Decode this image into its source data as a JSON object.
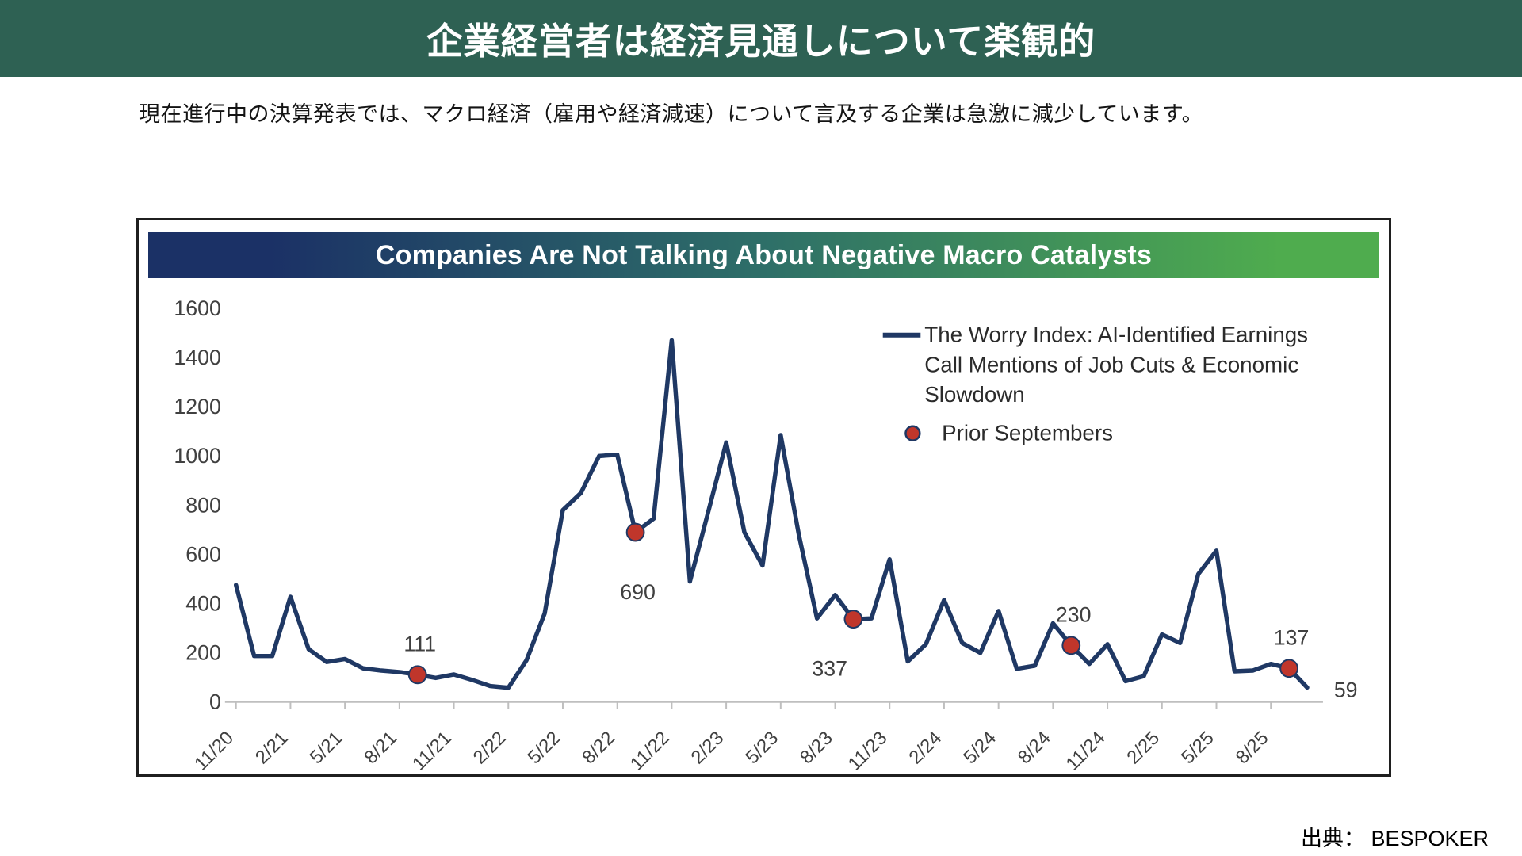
{
  "page": {
    "header": {
      "title": "企業経営者は経済見通しについて楽観的",
      "bg_color": "#2E6153",
      "text_color": "#FFFFFF"
    },
    "subtitle": "現在進行中の決算発表では、マクロ経済（雇用や経済減速）について言及する企業は急激に減少しています。",
    "source": "出典： BESPOKER"
  },
  "chart_data": {
    "type": "line",
    "title": "Companies Are Not Talking About Negative Macro Catalysts",
    "title_banner_gradient": [
      "#1B3166",
      "#2E6F68",
      "#4FAC4E"
    ],
    "line_color": "#1F3864",
    "marker_color": "#C0362B",
    "axis_color": "#BFBFBF",
    "label_color": "#404040",
    "legend_text_color": "#2B2B2B",
    "ylim": [
      0,
      1600
    ],
    "ytick_step": 200,
    "x_start_label": "11/20",
    "ticks_every_n_points": 3,
    "x_tick_labels": [
      "11/20",
      "2/21",
      "5/21",
      "8/21",
      "11/21",
      "2/22",
      "5/22",
      "8/22",
      "11/22",
      "2/23",
      "5/23",
      "8/23",
      "11/23",
      "2/24",
      "5/24",
      "8/24",
      "11/24",
      "2/25",
      "5/25",
      "8/25"
    ],
    "series": [
      {
        "name": "The Worry Index: AI-Identified Earnings Call Mentions of Job Cuts & Economic Slowdown",
        "values": [
          476,
          187,
          187,
          428,
          215,
          163,
          175,
          137,
          128,
          122,
          111,
          98,
          112,
          90,
          65,
          58,
          170,
          360,
          780,
          850,
          1000,
          1005,
          690,
          745,
          1470,
          490,
          770,
          1055,
          690,
          555,
          1085,
          680,
          340,
          435,
          337,
          340,
          580,
          165,
          235,
          415,
          240,
          200,
          370,
          135,
          148,
          320,
          230,
          155,
          235,
          85,
          105,
          275,
          240,
          520,
          615,
          125,
          128,
          155,
          137,
          59
        ]
      }
    ],
    "legend": {
      "series_label_lines": [
        "The Worry Index: AI-Identified Earnings",
        "Call Mentions of Job Cuts & Economic",
        "Slowdown"
      ],
      "marker_label": "Prior Septembers"
    },
    "annotations": [
      {
        "index": 10,
        "month": "9/21",
        "label": "111",
        "value": 111,
        "placement": "above"
      },
      {
        "index": 22,
        "month": "9/22",
        "label": "690",
        "value": 690,
        "placement": "below"
      },
      {
        "index": 34,
        "month": "9/23",
        "label": "337",
        "value": 337,
        "placement": "below-left"
      },
      {
        "index": 46,
        "month": "9/24",
        "label": "230",
        "value": 230,
        "placement": "above"
      },
      {
        "index": 58,
        "month": "9/25",
        "label": "137",
        "value": 137,
        "placement": "above"
      }
    ],
    "end_label": {
      "index": 59,
      "label": "59",
      "value": 59
    }
  }
}
